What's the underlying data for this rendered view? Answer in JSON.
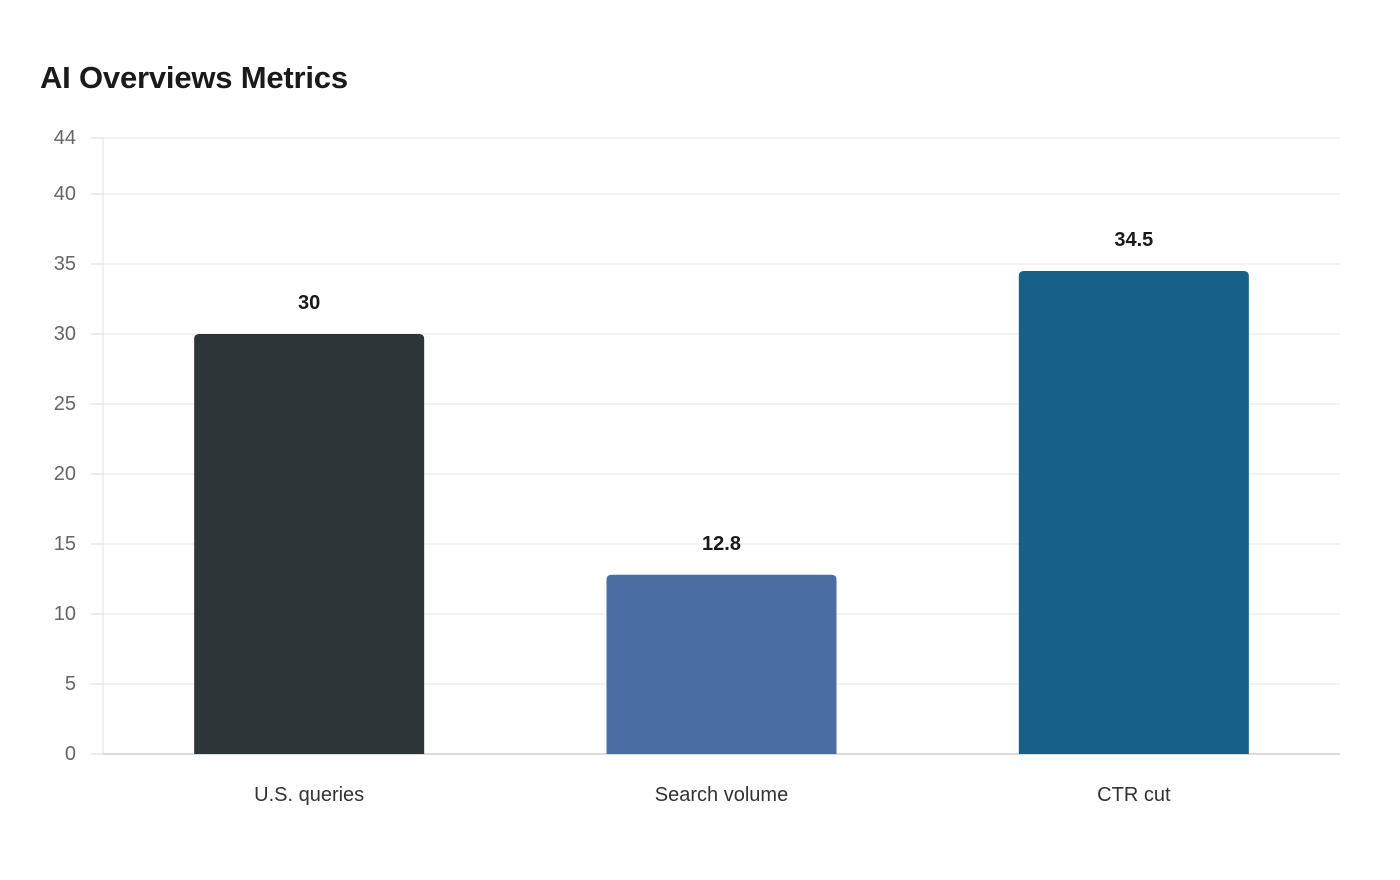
{
  "chart_data": {
    "type": "bar",
    "title": "AI Overviews Metrics",
    "xlabel": "",
    "ylabel": "",
    "categories": [
      "U.S. queries",
      "Search volume",
      "CTR cut"
    ],
    "values": [
      30,
      12.8,
      34.5
    ],
    "value_labels": [
      "30",
      "12.8",
      "34.5"
    ],
    "colors": [
      "#2e3538",
      "#4a6ea3",
      "#17608a"
    ],
    "ylim": [
      0,
      44
    ],
    "yticks": [
      0,
      5,
      10,
      15,
      20,
      25,
      30,
      35,
      40,
      44
    ],
    "grid": true,
    "legend": "none"
  }
}
